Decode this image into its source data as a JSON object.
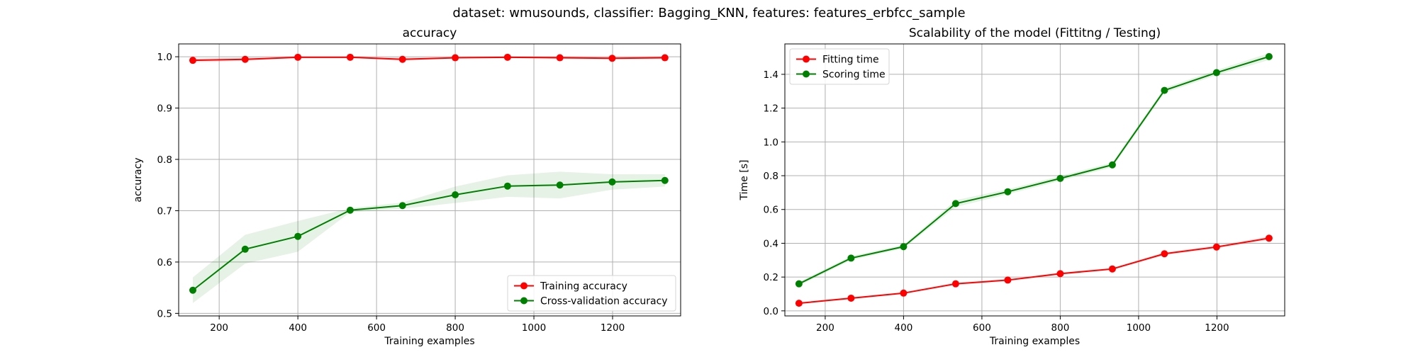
{
  "figure": {
    "suptitle": "dataset: wmusounds, classifier: Bagging_KNN, features: features_erbfcc_sample"
  },
  "chart_data": [
    {
      "type": "line",
      "title": "accuracy",
      "xlabel": "Training examples",
      "ylabel": "accuracy",
      "xlim": [
        97,
        1373
      ],
      "ylim": [
        0.495,
        1.025
      ],
      "xticks": [
        200,
        400,
        600,
        800,
        1000,
        1200
      ],
      "xtick_labels": [
        "200",
        "400",
        "600",
        "800",
        "1000",
        "1200"
      ],
      "yticks": [
        0.5,
        0.6,
        0.7,
        0.8,
        0.9,
        1.0
      ],
      "ytick_labels": [
        "0.5",
        "0.6",
        "0.7",
        "0.8",
        "0.9",
        "1.0"
      ],
      "grid": true,
      "legend_position": "lower-right",
      "x": [
        133,
        266,
        400,
        533,
        666,
        800,
        933,
        1066,
        1199,
        1333
      ],
      "series": [
        {
          "name": "Training accuracy",
          "color": "#ff0000",
          "fill_color": "#ff0000",
          "values": [
            0.993,
            0.995,
            0.999,
            0.999,
            0.995,
            0.998,
            0.999,
            0.998,
            0.997,
            0.998
          ],
          "band_low": [
            0.989,
            0.992,
            0.998,
            0.998,
            0.992,
            0.997,
            0.998,
            0.996,
            0.995,
            0.996
          ],
          "band_high": [
            0.997,
            0.998,
            1.0,
            1.0,
            0.998,
            0.999,
            1.0,
            1.0,
            0.999,
            1.0
          ]
        },
        {
          "name": "Cross-validation accuracy",
          "color": "#008000",
          "fill_color": "#008000",
          "values": [
            0.545,
            0.625,
            0.65,
            0.701,
            0.71,
            0.731,
            0.748,
            0.75,
            0.756,
            0.759
          ],
          "band_low": [
            0.52,
            0.597,
            0.62,
            0.697,
            0.704,
            0.715,
            0.727,
            0.724,
            0.741,
            0.747
          ],
          "band_high": [
            0.57,
            0.653,
            0.68,
            0.705,
            0.716,
            0.747,
            0.769,
            0.776,
            0.771,
            0.771
          ]
        }
      ]
    },
    {
      "type": "line",
      "title": "Scalability of the model (Fittitng / Testing)",
      "xlabel": "Training examples",
      "ylabel": "Time [s]",
      "xlim": [
        97,
        1373
      ],
      "ylim": [
        -0.03,
        1.58
      ],
      "xticks": [
        200,
        400,
        600,
        800,
        1000,
        1200
      ],
      "xtick_labels": [
        "200",
        "400",
        "600",
        "800",
        "1000",
        "1200"
      ],
      "yticks": [
        0.0,
        0.2,
        0.4,
        0.6,
        0.8,
        1.0,
        1.2,
        1.4
      ],
      "ytick_labels": [
        "0.0",
        "0.2",
        "0.4",
        "0.6",
        "0.8",
        "1.0",
        "1.2",
        "1.4"
      ],
      "grid": true,
      "legend_position": "upper-left",
      "x": [
        133,
        266,
        400,
        533,
        666,
        800,
        933,
        1066,
        1199,
        1333
      ],
      "series": [
        {
          "name": "Fitting time",
          "color": "#ff0000",
          "fill_color": "#ff0000",
          "values": [
            0.045,
            0.075,
            0.105,
            0.16,
            0.182,
            0.22,
            0.248,
            0.338,
            0.378,
            0.43
          ],
          "band_low": [
            0.04,
            0.07,
            0.1,
            0.153,
            0.176,
            0.214,
            0.242,
            0.33,
            0.37,
            0.42
          ],
          "band_high": [
            0.05,
            0.08,
            0.11,
            0.167,
            0.188,
            0.226,
            0.254,
            0.346,
            0.386,
            0.44
          ]
        },
        {
          "name": "Scoring time",
          "color": "#008000",
          "fill_color": "#008000",
          "values": [
            0.16,
            0.312,
            0.38,
            0.635,
            0.705,
            0.784,
            0.864,
            1.305,
            1.41,
            1.505
          ],
          "band_low": [
            0.15,
            0.3,
            0.37,
            0.615,
            0.69,
            0.77,
            0.85,
            1.29,
            1.395,
            1.485
          ],
          "band_high": [
            0.17,
            0.324,
            0.39,
            0.655,
            0.72,
            0.798,
            0.878,
            1.32,
            1.425,
            1.525
          ]
        }
      ]
    }
  ]
}
